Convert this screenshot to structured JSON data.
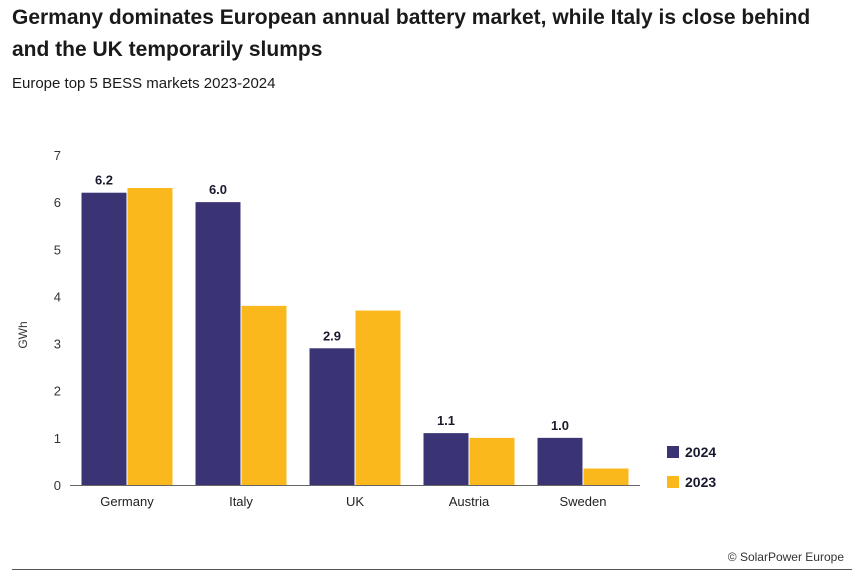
{
  "header": {
    "title": "Germany dominates European annual battery market, while Italy is close behind and the UK temporarily slumps",
    "subtitle": "Europe top 5 BESS markets 2023-2024"
  },
  "footer": {
    "source": "© SolarPower Europe"
  },
  "colors": {
    "series_2024": "#3b3474",
    "series_2023": "#fbb81c",
    "axis": "#666666"
  },
  "chart_data": {
    "type": "bar",
    "title": "",
    "xlabel": "",
    "ylabel": "GWh",
    "ylim": [
      0,
      7
    ],
    "yticks": [
      0,
      1,
      2,
      3,
      4,
      5,
      6,
      7
    ],
    "categories": [
      "Germany",
      "Italy",
      "UK",
      "Austria",
      "Sweden"
    ],
    "series": [
      {
        "name": "2024",
        "values": [
          6.2,
          6.0,
          2.9,
          1.1,
          1.0
        ],
        "data_labels": [
          "6.2",
          "6.0",
          "2.9",
          "1.1",
          "1.0"
        ]
      },
      {
        "name": "2023",
        "values": [
          6.3,
          3.8,
          3.7,
          1.0,
          0.35
        ]
      }
    ],
    "legend_position": "right"
  }
}
